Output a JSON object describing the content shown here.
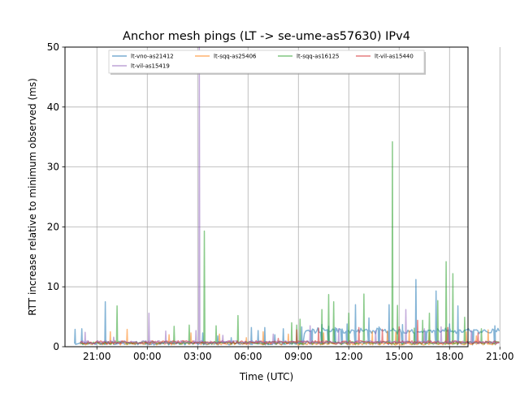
{
  "chart_data": {
    "type": "line",
    "title": "Anchor mesh pings (LT -> se-ume-as57630) IPv4",
    "xlabel": "Time (UTC)",
    "ylabel": "RTT increase relative to minimum observed (ms)",
    "xlim": [
      -1.9,
      22.1
    ],
    "ylim": [
      0,
      50
    ],
    "x_ticks": [
      {
        "value": 0,
        "label": "21:00"
      },
      {
        "value": 3,
        "label": "00:00"
      },
      {
        "value": 6,
        "label": "03:00"
      },
      {
        "value": 9,
        "label": "06:00"
      },
      {
        "value": 12,
        "label": "09:00"
      },
      {
        "value": 15,
        "label": "12:00"
      },
      {
        "value": 18,
        "label": "15:00"
      },
      {
        "value": 21,
        "label": "18:00"
      },
      {
        "value": 24,
        "label": "21:00"
      }
    ],
    "y_ticks": [
      0,
      10,
      20,
      30,
      40,
      50
    ],
    "grid": true,
    "legend_position": "top-center",
    "series": [
      {
        "name": "lt-vno-as21412",
        "color": "#1f77b4",
        "base": 0.3,
        "spikes": [
          [
            -1.3,
            2.9
          ],
          [
            -0.9,
            3.0
          ],
          [
            0.5,
            7.5
          ],
          [
            2.9,
            0.9
          ],
          [
            6.3,
            2.3
          ],
          [
            7.2,
            1.8
          ],
          [
            8.0,
            1.5
          ],
          [
            9.2,
            3.2
          ],
          [
            9.6,
            2.7
          ],
          [
            10.0,
            3.2
          ],
          [
            10.6,
            2.0
          ],
          [
            11.1,
            3.0
          ],
          [
            12.2,
            3.3
          ],
          [
            12.8,
            2.7
          ],
          [
            13.4,
            3.7
          ],
          [
            13.8,
            3.4
          ],
          [
            14.2,
            3.2
          ],
          [
            14.6,
            2.9
          ],
          [
            14.9,
            3.8
          ],
          [
            15.4,
            7.0
          ],
          [
            16.2,
            4.8
          ],
          [
            16.8,
            3.3
          ],
          [
            17.4,
            7.0
          ],
          [
            18.2,
            3.7
          ],
          [
            19.0,
            11.2
          ],
          [
            19.6,
            2.6
          ],
          [
            20.2,
            9.3
          ],
          [
            21.0,
            3.8
          ],
          [
            21.5,
            6.8
          ],
          [
            22.4,
            2.6
          ],
          [
            23.7,
            3.5
          ]
        ]
      },
      {
        "name": "lt-sqq-as25406",
        "color": "#ff7f0e",
        "base": 0.3,
        "spikes": [
          [
            0.8,
            2.5
          ],
          [
            1.8,
            2.9
          ],
          [
            4.3,
            2.0
          ],
          [
            5.6,
            2.3
          ],
          [
            7.3,
            2.1
          ],
          [
            8.9,
            1.5
          ],
          [
            9.9,
            2.5
          ],
          [
            11.4,
            2.1
          ],
          [
            13.5,
            2.3
          ],
          [
            16.4,
            2.5
          ],
          [
            17.3,
            2.6
          ],
          [
            17.8,
            2.4
          ],
          [
            18.6,
            2.7
          ],
          [
            19.8,
            2.4
          ],
          [
            20.8,
            2.6
          ],
          [
            22.0,
            2.5
          ],
          [
            22.6,
            1.8
          ],
          [
            23.3,
            2.8
          ]
        ]
      },
      {
        "name": "lt-sqq-as16125",
        "color": "#2ca02c",
        "base": 0.4,
        "spikes": [
          [
            1.2,
            6.8
          ],
          [
            4.6,
            3.4
          ],
          [
            5.5,
            3.6
          ],
          [
            6.4,
            19.3
          ],
          [
            7.1,
            3.5
          ],
          [
            8.4,
            5.2
          ],
          [
            11.6,
            4.0
          ],
          [
            11.9,
            3.6
          ],
          [
            12.1,
            4.6
          ],
          [
            13.4,
            6.2
          ],
          [
            13.8,
            8.7
          ],
          [
            14.1,
            7.5
          ],
          [
            15.0,
            5.6
          ],
          [
            15.9,
            8.8
          ],
          [
            17.6,
            34.2
          ],
          [
            17.9,
            6.9
          ],
          [
            18.9,
            3.1
          ],
          [
            19.4,
            4.4
          ],
          [
            19.8,
            5.6
          ],
          [
            20.3,
            7.7
          ],
          [
            20.8,
            14.2
          ],
          [
            21.2,
            12.2
          ],
          [
            21.9,
            4.9
          ],
          [
            22.9,
            3.0
          ]
        ]
      },
      {
        "name": "lt-vil-as15440",
        "color": "#d62728",
        "base": 0.5,
        "spikes": [
          [
            10.8,
            1.4
          ],
          [
            11.9,
            2.8
          ],
          [
            13.2,
            3.1
          ],
          [
            15.6,
            3.2
          ],
          [
            17.0,
            2.9
          ],
          [
            18.0,
            3.3
          ],
          [
            19.1,
            4.4
          ],
          [
            20.9,
            3.2
          ],
          [
            22.7,
            2.3
          ]
        ]
      },
      {
        "name": "lt-vil-as15419",
        "color": "#9467bd",
        "base": 0.5,
        "spikes": [
          [
            -0.7,
            2.4
          ],
          [
            1.0,
            1.6
          ],
          [
            3.1,
            5.6
          ],
          [
            4.1,
            2.6
          ],
          [
            5.9,
            2.7
          ],
          [
            6.1,
            50
          ],
          [
            7.5,
            1.9
          ],
          [
            10.5,
            2.1
          ],
          [
            12.7,
            3.5
          ],
          [
            14.4,
            3.0
          ],
          [
            16.6,
            2.7
          ],
          [
            18.4,
            6.2
          ],
          [
            19.5,
            3.0
          ],
          [
            20.5,
            3.3
          ],
          [
            22.3,
            2.7
          ]
        ]
      }
    ]
  }
}
